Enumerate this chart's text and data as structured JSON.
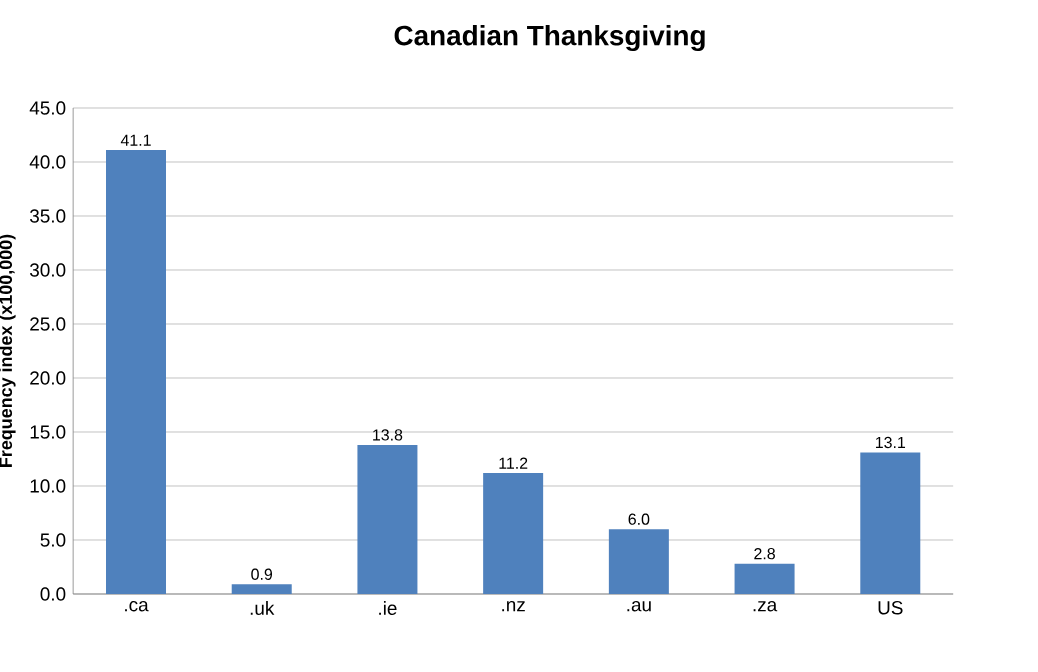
{
  "chart_data": {
    "type": "bar",
    "title": "Canadian Thanksgiving",
    "ylabel": "Frequency index (x100,000)",
    "categories": [
      ".ca",
      ".uk",
      ".ie",
      ".nz",
      ".au",
      ".za",
      "US"
    ],
    "values": [
      41.1,
      0.9,
      13.8,
      11.2,
      6.0,
      2.8,
      13.1
    ],
    "value_labels": [
      "41.1",
      "0.9",
      "13.8",
      "11.2",
      "6.0",
      "2.8",
      "13.1"
    ],
    "color": "#4f81bd",
    "ylim": [
      0,
      45
    ],
    "yticks": [
      {
        "value": 0,
        "label": "0.0"
      },
      {
        "value": 5,
        "label": "5.0"
      },
      {
        "value": 10,
        "label": "10.0"
      },
      {
        "value": 15,
        "label": "15.0"
      },
      {
        "value": 20,
        "label": "20.0"
      },
      {
        "value": 25,
        "label": "25.0"
      },
      {
        "value": 30,
        "label": "30.0"
      },
      {
        "value": 35,
        "label": "35.0"
      },
      {
        "value": 40,
        "label": "40.0"
      },
      {
        "value": 45,
        "label": "45.0"
      }
    ],
    "grid": "y",
    "legend": false
  }
}
